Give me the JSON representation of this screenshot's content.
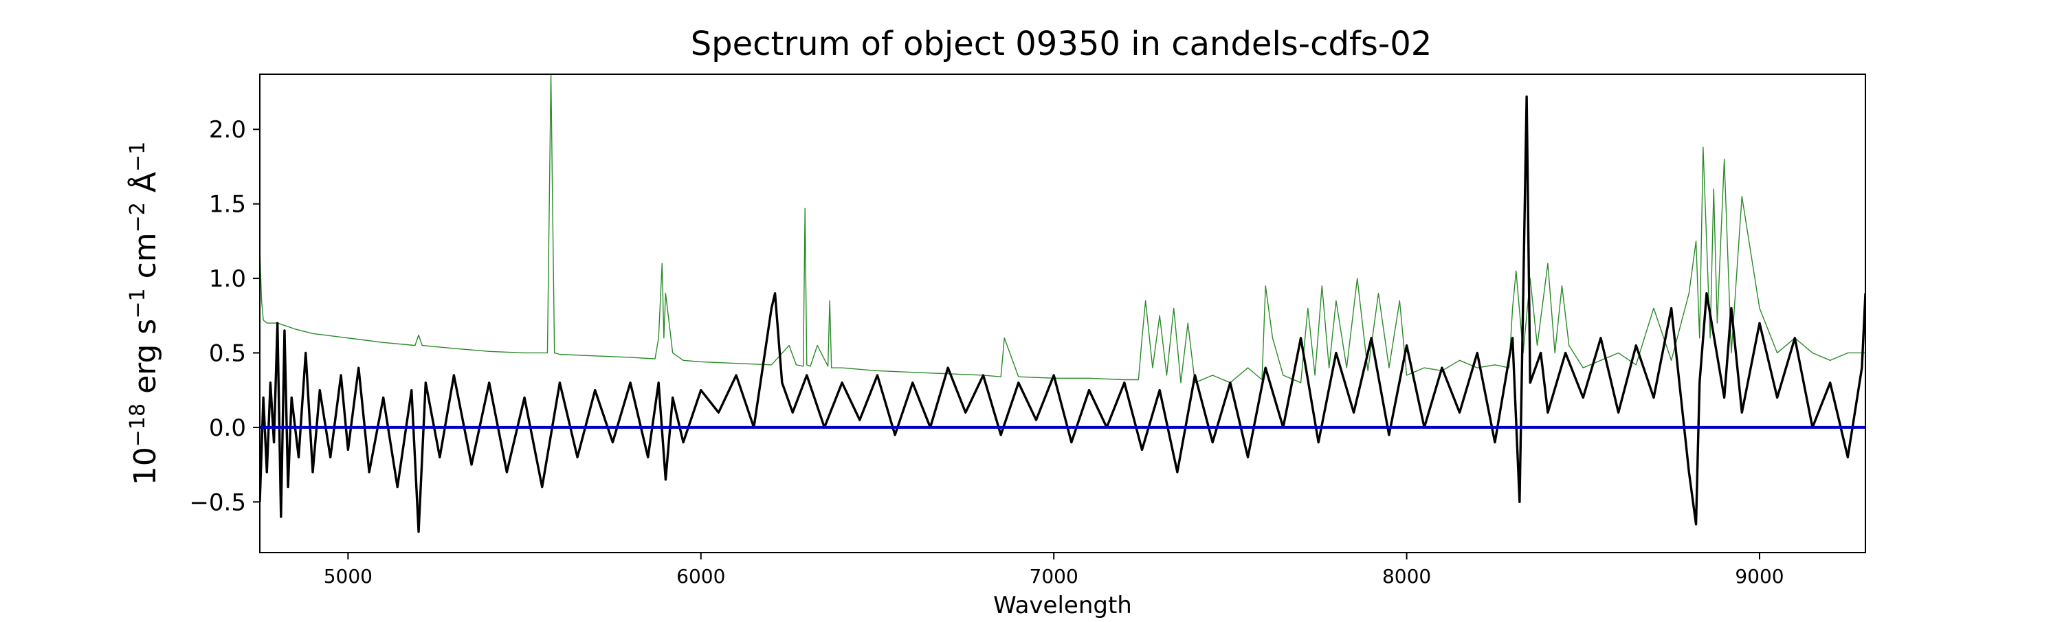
{
  "chart_data": {
    "type": "line",
    "title": "Spectrum of object 09350 in candels-cdfs-02",
    "xlabel": "Wavelength",
    "ylabel": {
      "base": "10",
      "exp1": "−18",
      "t1": " erg s",
      "exp2": "−1",
      "t2": " cm",
      "exp3": "−2",
      "t3": " Å",
      "exp4": "−1"
    },
    "xlim": [
      4750,
      9300
    ],
    "ylim": [
      -0.84,
      2.37
    ],
    "xticks": [
      5000,
      6000,
      7000,
      8000,
      9000
    ],
    "xtick_labels": [
      "5000",
      "6000",
      "7000",
      "8000",
      "9000"
    ],
    "yticks": [
      -0.5,
      0.0,
      0.5,
      1.0,
      1.5,
      2.0
    ],
    "ytick_labels": [
      "−0.5",
      "0.0",
      "0.5",
      "1.0",
      "1.5",
      "2.0"
    ],
    "grid": false,
    "colors": {
      "flux": "#000000",
      "error": "#2a8a2a",
      "zero": "#0000cc"
    },
    "series": [
      {
        "role": "flux",
        "x": [
          4750,
          4760,
          4770,
          4780,
          4790,
          4800,
          4810,
          4820,
          4830,
          4840,
          4860,
          4880,
          4900,
          4920,
          4950,
          4980,
          5000,
          5030,
          5060,
          5100,
          5140,
          5180,
          5200,
          5220,
          5260,
          5300,
          5350,
          5400,
          5450,
          5500,
          5550,
          5600,
          5650,
          5700,
          5750,
          5800,
          5850,
          5880,
          5900,
          5920,
          5950,
          6000,
          6050,
          6100,
          6150,
          6200,
          6210,
          6230,
          6260,
          6300,
          6350,
          6400,
          6450,
          6500,
          6550,
          6600,
          6650,
          6700,
          6750,
          6800,
          6850,
          6900,
          6950,
          7000,
          7050,
          7100,
          7150,
          7200,
          7250,
          7300,
          7350,
          7400,
          7450,
          7500,
          7550,
          7600,
          7650,
          7700,
          7750,
          7800,
          7850,
          7900,
          7950,
          8000,
          8050,
          8100,
          8150,
          8200,
          8250,
          8300,
          8320,
          8340,
          8350,
          8380,
          8400,
          8450,
          8500,
          8550,
          8600,
          8650,
          8700,
          8750,
          8800,
          8820,
          8830,
          8850,
          8900,
          8920,
          8950,
          9000,
          9050,
          9100,
          9150,
          9200,
          9250,
          9290,
          9300
        ],
        "y": [
          -0.5,
          0.2,
          -0.3,
          0.3,
          -0.1,
          0.7,
          -0.6,
          0.65,
          -0.4,
          0.2,
          -0.2,
          0.5,
          -0.3,
          0.25,
          -0.2,
          0.35,
          -0.15,
          0.4,
          -0.3,
          0.2,
          -0.4,
          0.25,
          -0.7,
          0.3,
          -0.2,
          0.35,
          -0.25,
          0.3,
          -0.3,
          0.2,
          -0.4,
          0.3,
          -0.2,
          0.25,
          -0.1,
          0.3,
          -0.2,
          0.3,
          -0.35,
          0.2,
          -0.1,
          0.25,
          0.1,
          0.35,
          0.0,
          0.8,
          0.9,
          0.3,
          0.1,
          0.35,
          0.0,
          0.3,
          0.05,
          0.35,
          -0.05,
          0.3,
          0.0,
          0.4,
          0.1,
          0.35,
          -0.05,
          0.3,
          0.05,
          0.35,
          -0.1,
          0.25,
          0.0,
          0.3,
          -0.15,
          0.25,
          -0.3,
          0.35,
          -0.1,
          0.3,
          -0.2,
          0.4,
          0.0,
          0.6,
          -0.1,
          0.5,
          0.1,
          0.6,
          -0.05,
          0.55,
          0.0,
          0.4,
          0.1,
          0.5,
          -0.1,
          0.6,
          -0.5,
          2.22,
          0.3,
          0.5,
          0.1,
          0.5,
          0.2,
          0.6,
          0.1,
          0.55,
          0.2,
          0.8,
          -0.3,
          -0.65,
          0.3,
          0.9,
          0.2,
          0.8,
          0.1,
          0.7,
          0.2,
          0.6,
          0.0,
          0.3,
          -0.2,
          0.4,
          0.9
        ]
      },
      {
        "role": "error",
        "x": [
          4750,
          4755,
          4760,
          4770,
          4800,
          4850,
          4900,
          5000,
          5100,
          5190,
          5200,
          5210,
          5300,
          5400,
          5500,
          5565,
          5575,
          5585,
          5600,
          5700,
          5800,
          5870,
          5880,
          5890,
          5895,
          5900,
          5920,
          5950,
          6000,
          6100,
          6200,
          6250,
          6270,
          6290,
          6295,
          6300,
          6310,
          6330,
          6360,
          6365,
          6370,
          6400,
          6500,
          6600,
          6700,
          6800,
          6850,
          6860,
          6900,
          7000,
          7100,
          7200,
          7240,
          7250,
          7260,
          7280,
          7300,
          7320,
          7340,
          7360,
          7380,
          7400,
          7450,
          7500,
          7550,
          7590,
          7600,
          7620,
          7650,
          7700,
          7720,
          7740,
          7760,
          7780,
          7800,
          7830,
          7860,
          7890,
          7920,
          7950,
          7980,
          8000,
          8050,
          8100,
          8150,
          8200,
          8250,
          8290,
          8300,
          8310,
          8330,
          8350,
          8370,
          8400,
          8420,
          8440,
          8460,
          8500,
          8550,
          8600,
          8650,
          8700,
          8750,
          8800,
          8820,
          8830,
          8840,
          8860,
          8870,
          8880,
          8900,
          8920,
          8950,
          9000,
          9050,
          9100,
          9150,
          9200,
          9250,
          9300
        ],
        "y": [
          1.2,
          0.85,
          0.72,
          0.7,
          0.7,
          0.66,
          0.63,
          0.6,
          0.57,
          0.55,
          0.62,
          0.55,
          0.53,
          0.51,
          0.5,
          0.5,
          2.37,
          0.5,
          0.49,
          0.48,
          0.47,
          0.46,
          0.6,
          1.1,
          0.6,
          0.9,
          0.5,
          0.45,
          0.44,
          0.43,
          0.42,
          0.55,
          0.42,
          0.41,
          1.47,
          0.42,
          0.41,
          0.55,
          0.41,
          0.85,
          0.4,
          0.4,
          0.38,
          0.37,
          0.36,
          0.35,
          0.34,
          0.6,
          0.34,
          0.33,
          0.33,
          0.32,
          0.32,
          0.6,
          0.85,
          0.4,
          0.75,
          0.35,
          0.8,
          0.3,
          0.7,
          0.3,
          0.35,
          0.3,
          0.4,
          0.32,
          0.95,
          0.6,
          0.35,
          0.3,
          0.8,
          0.35,
          0.95,
          0.4,
          0.85,
          0.4,
          1.0,
          0.38,
          0.9,
          0.4,
          0.85,
          0.35,
          0.4,
          0.38,
          0.45,
          0.4,
          0.42,
          0.4,
          0.8,
          1.05,
          0.5,
          1.0,
          0.55,
          1.1,
          0.5,
          0.95,
          0.55,
          0.4,
          0.45,
          0.5,
          0.42,
          0.8,
          0.45,
          0.9,
          1.25,
          0.6,
          1.88,
          0.6,
          1.6,
          0.7,
          1.8,
          0.5,
          1.55,
          0.8,
          0.5,
          0.6,
          0.5,
          0.45,
          0.5,
          0.5
        ]
      },
      {
        "role": "zero",
        "x": [
          4750,
          9300
        ],
        "y": [
          0.0,
          0.0
        ]
      }
    ]
  }
}
